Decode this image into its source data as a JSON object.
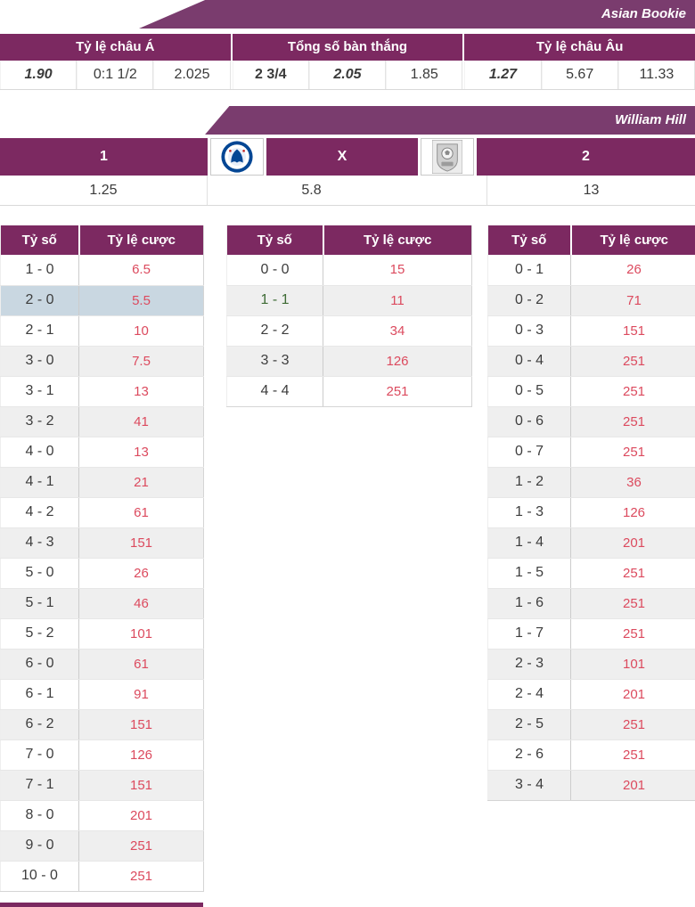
{
  "accent_colors": {
    "banner_purple": "#7a3c6e",
    "header_purple": "#7c2961",
    "odds_red": "#dc4a5e",
    "strong_red": "#cc2130",
    "green": "#2f6b31",
    "blue": "#3c3c9c",
    "highlight_blue": "#c9d7e1",
    "alt_row_gray": "#efefef"
  },
  "asian": {
    "banner": "Asian Bookie",
    "groups": [
      {
        "header": "Tỷ lệ châu Á",
        "cells": [
          {
            "text": "1.90",
            "cls": "v bold-ital"
          },
          {
            "text": "0:1 1/2",
            "cls": "v"
          },
          {
            "text": "2.025",
            "cls": "v"
          }
        ]
      },
      {
        "header": "Tổng số bàn thắng",
        "cells": [
          {
            "text": "2 3/4",
            "cls": "v green-b"
          },
          {
            "text": "2.05",
            "cls": "v red-bi"
          },
          {
            "text": "1.85",
            "cls": "v"
          }
        ]
      },
      {
        "header": "Tỷ lệ châu Âu",
        "cells": [
          {
            "text": "1.27",
            "cls": "v bold-ital"
          },
          {
            "text": "5.67",
            "cls": "v blue"
          },
          {
            "text": "11.33",
            "cls": "v"
          }
        ]
      }
    ]
  },
  "william_hill": {
    "banner": "William Hill",
    "home_label": "1",
    "draw_label": "X",
    "away_label": "2",
    "home_logo": "chelsea-crest",
    "away_logo": "away-club-crest",
    "home_odds": "1.25",
    "draw_odds": "5.8",
    "away_odds": "13"
  },
  "score_tables": [
    {
      "headers": {
        "score": "Tỷ số",
        "odds": "Tỷ lệ cược"
      },
      "rows": [
        {
          "score": "1 - 0",
          "odds": "6.5"
        },
        {
          "score": "2 - 0",
          "odds": "5.5",
          "highlight": true
        },
        {
          "score": "2 - 1",
          "odds": "10"
        },
        {
          "score": "3 - 0",
          "odds": "7.5"
        },
        {
          "score": "3 - 1",
          "odds": "13"
        },
        {
          "score": "3 - 2",
          "odds": "41"
        },
        {
          "score": "4 - 0",
          "odds": "13"
        },
        {
          "score": "4 - 1",
          "odds": "21"
        },
        {
          "score": "4 - 2",
          "odds": "61"
        },
        {
          "score": "4 - 3",
          "odds": "151"
        },
        {
          "score": "5 - 0",
          "odds": "26"
        },
        {
          "score": "5 - 1",
          "odds": "46"
        },
        {
          "score": "5 - 2",
          "odds": "101"
        },
        {
          "score": "6 - 0",
          "odds": "61"
        },
        {
          "score": "6 - 1",
          "odds": "91"
        },
        {
          "score": "6 - 2",
          "odds": "151"
        },
        {
          "score": "7 - 0",
          "odds": "126"
        },
        {
          "score": "7 - 1",
          "odds": "151"
        },
        {
          "score": "8 - 0",
          "odds": "201"
        },
        {
          "score": "9 - 0",
          "odds": "251"
        },
        {
          "score": "10 - 0",
          "odds": "251"
        }
      ]
    },
    {
      "headers": {
        "score": "Tỷ số",
        "odds": "Tỷ lệ cược"
      },
      "rows": [
        {
          "score": "0 - 0",
          "odds": "15"
        },
        {
          "score": "1 - 1",
          "odds": "11",
          "green": true
        },
        {
          "score": "2 - 2",
          "odds": "34"
        },
        {
          "score": "3 - 3",
          "odds": "126"
        },
        {
          "score": "4 - 4",
          "odds": "251"
        }
      ]
    },
    {
      "headers": {
        "score": "Tỷ số",
        "odds": "Tỷ lệ cược"
      },
      "rows": [
        {
          "score": "0 - 1",
          "odds": "26"
        },
        {
          "score": "0 - 2",
          "odds": "71"
        },
        {
          "score": "0 - 3",
          "odds": "151"
        },
        {
          "score": "0 - 4",
          "odds": "251"
        },
        {
          "score": "0 - 5",
          "odds": "251"
        },
        {
          "score": "0 - 6",
          "odds": "251"
        },
        {
          "score": "0 - 7",
          "odds": "251"
        },
        {
          "score": "1 - 2",
          "odds": "36"
        },
        {
          "score": "1 - 3",
          "odds": "126"
        },
        {
          "score": "1 - 4",
          "odds": "201"
        },
        {
          "score": "1 - 5",
          "odds": "251"
        },
        {
          "score": "1 - 6",
          "odds": "251"
        },
        {
          "score": "1 - 7",
          "odds": "251"
        },
        {
          "score": "2 - 3",
          "odds": "101"
        },
        {
          "score": "2 - 4",
          "odds": "201"
        },
        {
          "score": "2 - 5",
          "odds": "251"
        },
        {
          "score": "2 - 6",
          "odds": "251"
        },
        {
          "score": "3 - 4",
          "odds": "201"
        }
      ]
    }
  ]
}
